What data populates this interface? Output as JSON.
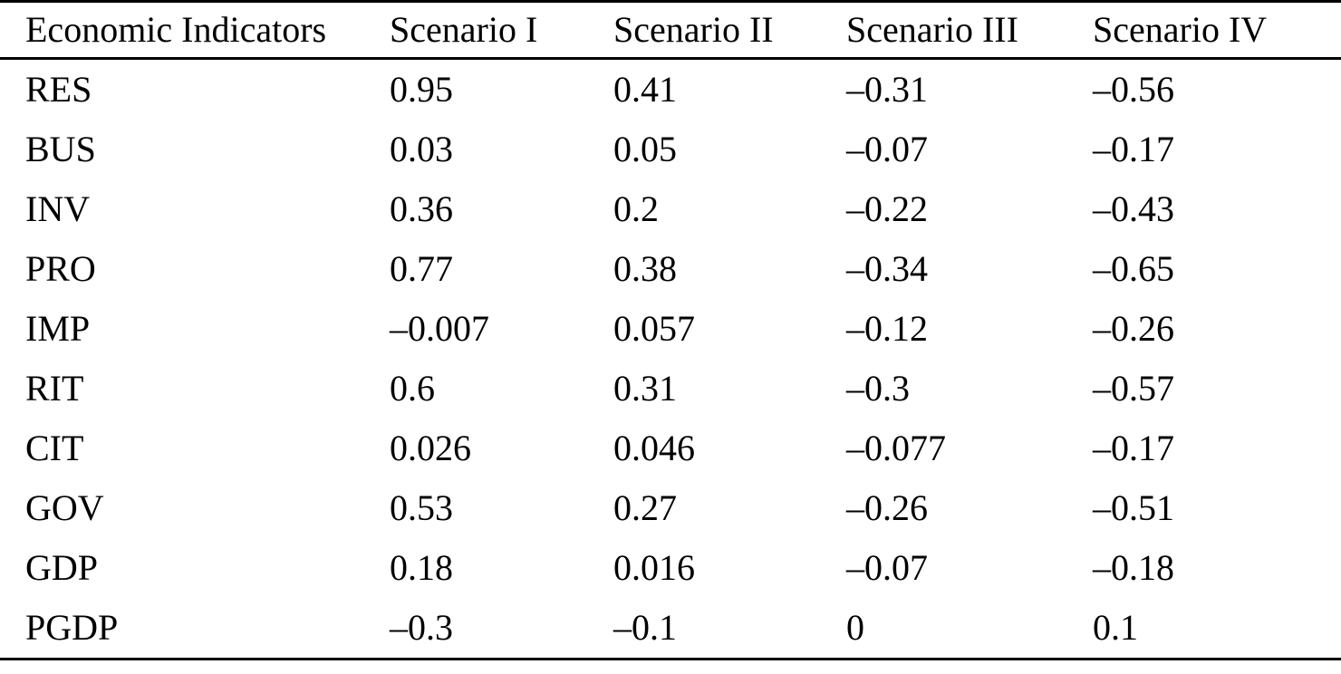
{
  "table": {
    "columns": [
      "Economic Indicators",
      "Scenario I",
      "Scenario II",
      "Scenario III",
      "Scenario IV"
    ],
    "rows": [
      [
        "RES",
        "0.95",
        "0.41",
        "–0.31",
        "–0.56"
      ],
      [
        "BUS",
        "0.03",
        "0.05",
        "–0.07",
        "–0.17"
      ],
      [
        "INV",
        "0.36",
        "0.2",
        "–0.22",
        "–0.43"
      ],
      [
        "PRO",
        "0.77",
        "0.38",
        "–0.34",
        "–0.65"
      ],
      [
        "IMP",
        "–0.007",
        "0.057",
        "–0.12",
        "–0.26"
      ],
      [
        "RIT",
        "0.6",
        "0.31",
        "–0.3",
        "–0.57"
      ],
      [
        "CIT",
        "0.026",
        "0.046",
        "–0.077",
        "–0.17"
      ],
      [
        "GOV",
        "0.53",
        "0.27",
        "–0.26",
        "–0.51"
      ],
      [
        "GDP",
        "0.18",
        "0.016",
        "–0.07",
        "–0.18"
      ],
      [
        "PGDP",
        "–0.3",
        "–0.1",
        "0",
        "0.1"
      ]
    ]
  },
  "chart_data": {
    "type": "table",
    "title": "",
    "categories": [
      "RES",
      "BUS",
      "INV",
      "PRO",
      "IMP",
      "RIT",
      "CIT",
      "GOV",
      "GDP",
      "PGDP"
    ],
    "series": [
      {
        "name": "Scenario I",
        "values": [
          0.95,
          0.03,
          0.36,
          0.77,
          -0.007,
          0.6,
          0.026,
          0.53,
          0.18,
          -0.3
        ]
      },
      {
        "name": "Scenario II",
        "values": [
          0.41,
          0.05,
          0.2,
          0.38,
          0.057,
          0.31,
          0.046,
          0.27,
          0.016,
          -0.1
        ]
      },
      {
        "name": "Scenario III",
        "values": [
          -0.31,
          -0.07,
          -0.22,
          -0.34,
          -0.12,
          -0.3,
          -0.077,
          -0.26,
          -0.07,
          0
        ]
      },
      {
        "name": "Scenario IV",
        "values": [
          -0.56,
          -0.17,
          -0.43,
          -0.65,
          -0.26,
          -0.57,
          -0.17,
          -0.51,
          -0.18,
          0.1
        ]
      }
    ]
  },
  "colors": {
    "text": "#000000",
    "background": "#ffffff",
    "rule": "#000000"
  }
}
